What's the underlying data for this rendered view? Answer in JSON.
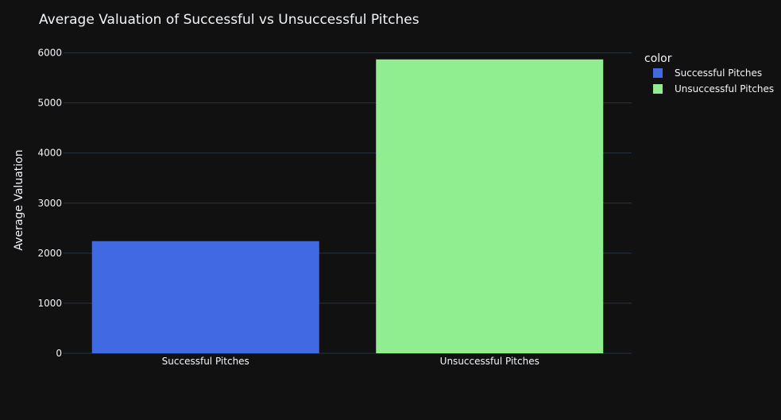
{
  "chart_data": {
    "type": "bar",
    "title": "Average Valuation of Successful vs Unsuccessful Pitches",
    "xlabel": "",
    "ylabel": "Average Valuation",
    "categories": [
      "Successful Pitches",
      "Unsuccessful Pitches"
    ],
    "values": [
      2240,
      5870
    ],
    "colors": [
      "#4169e1",
      "#90ee90"
    ],
    "ylim": [
      0,
      6200
    ],
    "yticks": [
      0,
      1000,
      2000,
      3000,
      4000,
      5000,
      6000
    ],
    "grid": true,
    "legend": {
      "title": "color",
      "placement": "top-right",
      "entries": [
        {
          "label": "Successful Pitches",
          "color": "#4169e1"
        },
        {
          "label": "Unsuccessful Pitches",
          "color": "#90ee90"
        }
      ]
    }
  },
  "theme": {
    "background": "#111111",
    "grid": "#283442",
    "text": "#f2f5fa"
  }
}
